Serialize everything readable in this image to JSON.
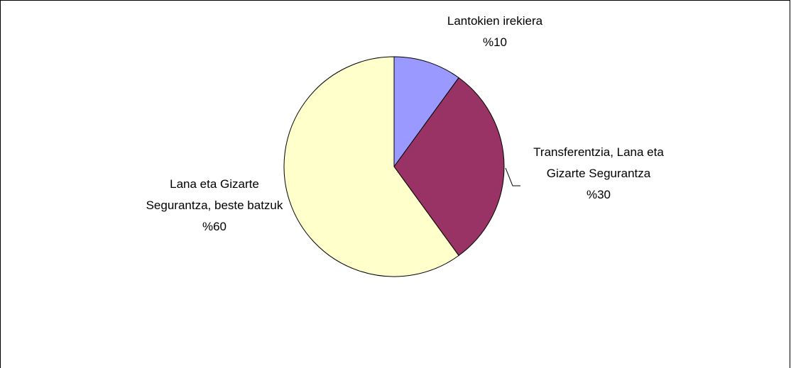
{
  "chart_data": {
    "type": "pie",
    "categories": [
      "Lantokien irekiera",
      "Transferentzia, Lana eta Gizarte Segurantza",
      "Lana eta Gizarte Segurantza, beste batzuk"
    ],
    "values": [
      10,
      30,
      60
    ],
    "value_labels": [
      "%10",
      "%30",
      "%60"
    ],
    "colors": [
      "#9999ff",
      "#993366",
      "#ffffcc"
    ]
  }
}
